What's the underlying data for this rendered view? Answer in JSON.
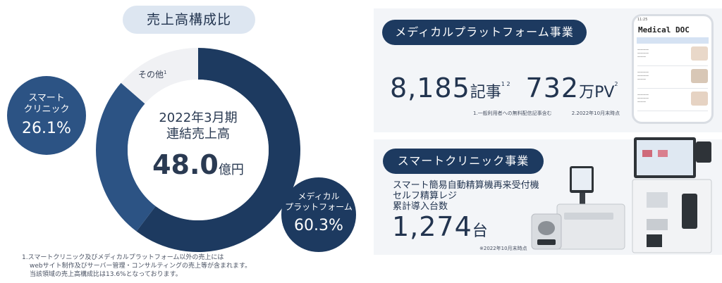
{
  "left": {
    "title": "売上高構成比",
    "center": {
      "line1": "2022年3月期",
      "line2": "連結売上高",
      "value": "48.0",
      "unit": "億円"
    },
    "other_label": "その他",
    "other_sup": "1",
    "smart_label_1": "スマート",
    "smart_label_2": "クリニック",
    "smart_pct": "26.1%",
    "medical_label_1": "メディカル",
    "medical_label_2": "プラットフォーム",
    "medical_pct": "60.3%",
    "footnote_1": "1.スマートクリニック及びメディカルプラットフォーム以外の売上には",
    "footnote_2": "webサイト制作及びサーバー管理・コンサルティングの売上等が含まれます。",
    "footnote_3": "当該領域の売上高構成比は13.6%となっております。"
  },
  "chart_data": {
    "type": "pie",
    "title": "売上高構成比",
    "categories": [
      "メディカルプラットフォーム",
      "スマートクリニック",
      "その他"
    ],
    "values": [
      60.3,
      26.1,
      13.6
    ],
    "colors": [
      "#1d3a60",
      "#2c5384",
      "#f0f1f4"
    ]
  },
  "right": {
    "medical_title": "メディカルプラットフォーム事業",
    "articles_num": "8,185",
    "articles_unit": "記事",
    "articles_sup": "1 2",
    "pv_num": "732",
    "pv_unit": "万PV",
    "pv_sup": "2",
    "note_1": "1.一般利用者への無料配信記事含む",
    "note_2": "2.2022年10月末時点",
    "phone_logo": "Medical DOC",
    "clinic_title": "スマートクリニック事業",
    "clinic_line_1": "スマート簡易自動精算機再来受付機",
    "clinic_line_2": "セルフ精算レジ",
    "clinic_line_3": "累計導入台数",
    "clinic_num": "1,274",
    "clinic_unit": "台",
    "clinic_note": "※2022年10月末時点"
  }
}
